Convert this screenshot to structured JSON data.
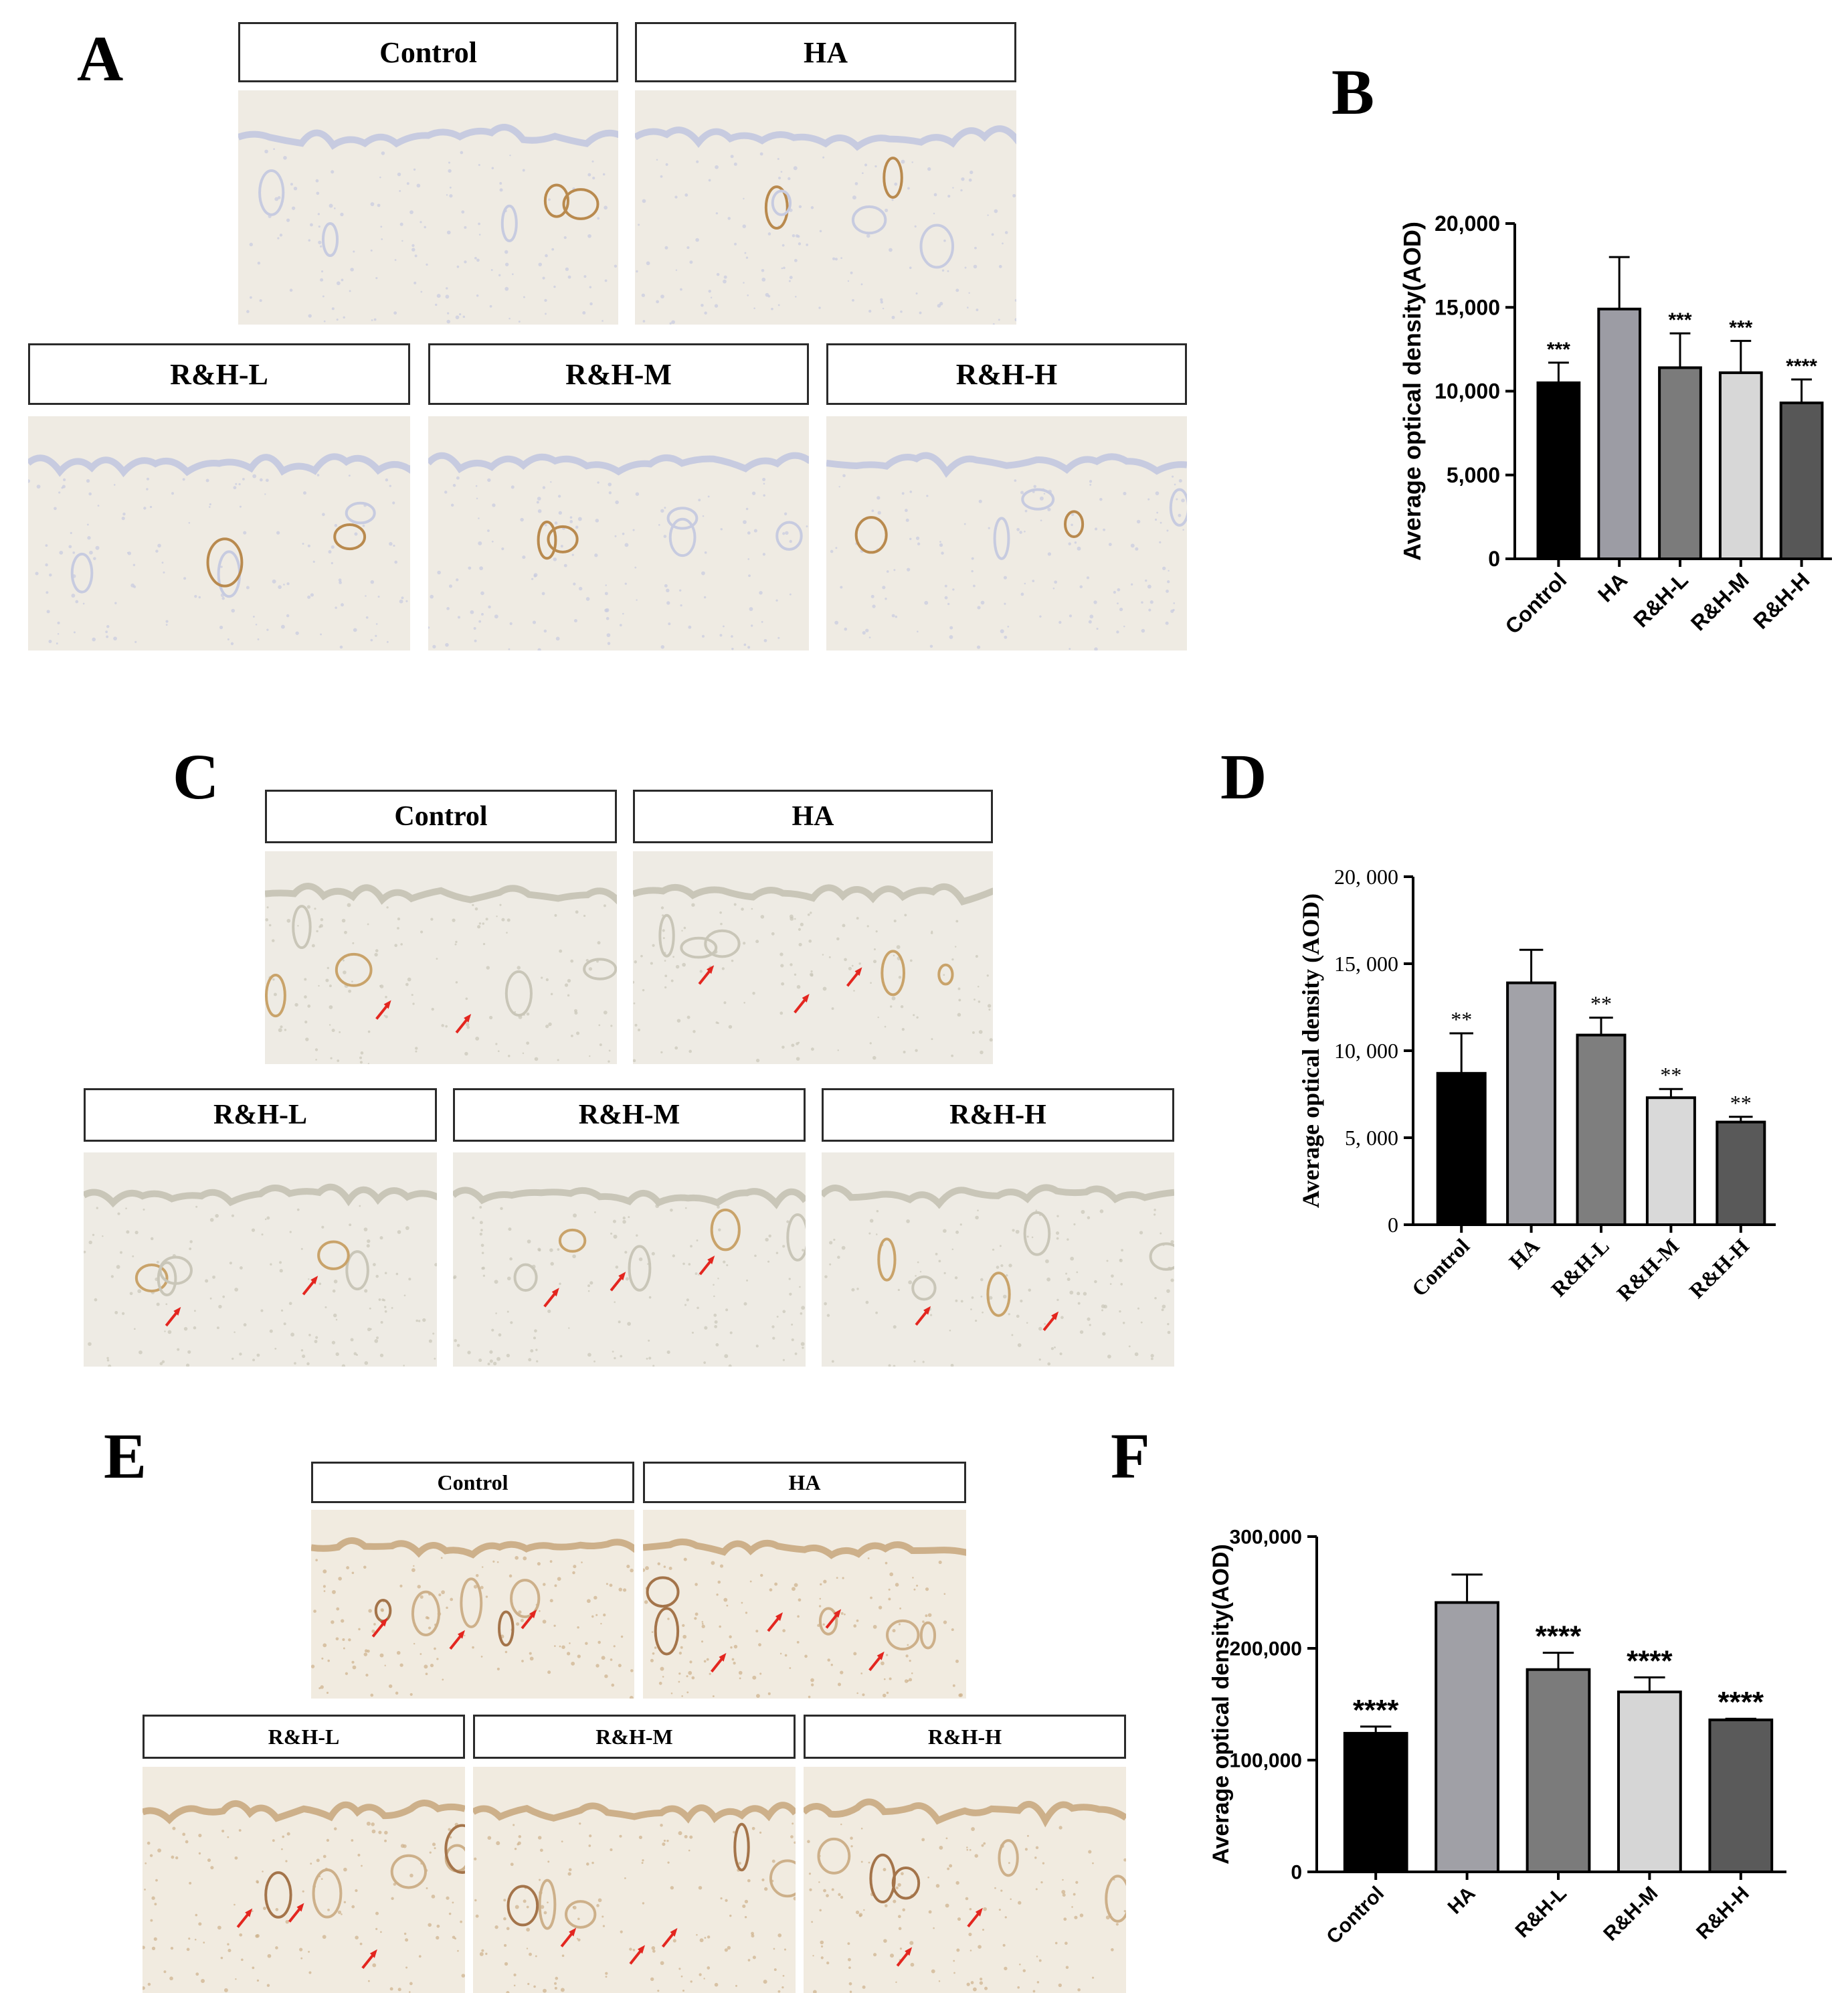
{
  "panels": {
    "A": {
      "letter": "A",
      "labels": [
        "Control",
        "HA",
        "R&H-L",
        "R&H-M",
        "R&H-H"
      ]
    },
    "B": {
      "letter": "B"
    },
    "C": {
      "letter": "C",
      "labels": [
        "Control",
        "HA",
        "R&H-L",
        "R&H-M",
        "R&H-H"
      ]
    },
    "D": {
      "letter": "D"
    },
    "E": {
      "letter": "E",
      "labels": [
        "Control",
        "HA",
        "R&H-L",
        "R&H-M",
        "R&H-H"
      ]
    },
    "F": {
      "letter": "F"
    }
  },
  "stain_colors": {
    "A": {
      "bg": "#efebe3",
      "tissue": "#c7cbe0",
      "accent": "#b98a4e"
    },
    "C": {
      "bg": "#eeebe4",
      "tissue": "#c9c6b8",
      "accent": "#c9a36a"
    },
    "E": {
      "bg": "#f1ebe0",
      "tissue": "#cdb08a",
      "accent": "#a4744a"
    }
  },
  "arrow_color": "#e3261f",
  "chart_data": [
    {
      "type": "bar",
      "panel": "B",
      "categories": [
        "Control",
        "HA",
        "R&H-L",
        "R&H-M",
        "R&H-H"
      ],
      "values": [
        10500,
        14900,
        11400,
        11100,
        9300
      ],
      "errors": [
        1200,
        3100,
        2050,
        1900,
        1400
      ],
      "significance": [
        "***",
        "",
        "***",
        "***",
        "****"
      ],
      "bar_colors": [
        "#000000",
        "#9c9ca4",
        "#7b7b7b",
        "#d7d7d7",
        "#575757"
      ],
      "ylabel": "Average optical density(AOD)",
      "ylim": [
        0,
        20000
      ],
      "yticks": [
        0,
        5000,
        10000,
        15000,
        20000
      ],
      "ytick_labels": [
        "0",
        "5,000",
        "10,000",
        "15,000",
        "20,000"
      ]
    },
    {
      "type": "bar",
      "panel": "D",
      "categories": [
        "Control",
        "HA",
        "R&H-L",
        "R&H-M",
        "R&H-H"
      ],
      "values": [
        8700,
        13900,
        10900,
        7300,
        5900
      ],
      "errors": [
        2300,
        1900,
        1000,
        500,
        300
      ],
      "significance": [
        "**",
        "",
        "**",
        "**",
        "**"
      ],
      "bar_colors": [
        "#000000",
        "#a2a2a8",
        "#7e7e7e",
        "#d9d9d9",
        "#595959"
      ],
      "ylabel": "Average optical density (AOD)",
      "ylim": [
        0,
        20000
      ],
      "yticks": [
        0,
        5000,
        10000,
        15000,
        20000
      ],
      "ytick_labels": [
        "0",
        "5, 000",
        "10, 000",
        "15, 000",
        "20, 000"
      ]
    },
    {
      "type": "bar",
      "panel": "F",
      "categories": [
        "Control",
        "HA",
        "R&H-L",
        "R&H-M",
        "R&H-H"
      ],
      "values": [
        124000,
        241000,
        181000,
        161000,
        136000
      ],
      "errors": [
        6000,
        25000,
        15000,
        13000,
        1000
      ],
      "significance": [
        "****",
        "",
        "****",
        "****",
        "****"
      ],
      "bar_colors": [
        "#000000",
        "#a0a0a6",
        "#7b7b7b",
        "#d6d6d6",
        "#5a5a5a"
      ],
      "ylabel": "Average optical density(AOD)",
      "ylim": [
        0,
        300000
      ],
      "yticks": [
        0,
        100000,
        200000,
        300000
      ],
      "ytick_labels": [
        "0",
        "100,000",
        "200,000",
        "300,000"
      ]
    }
  ]
}
